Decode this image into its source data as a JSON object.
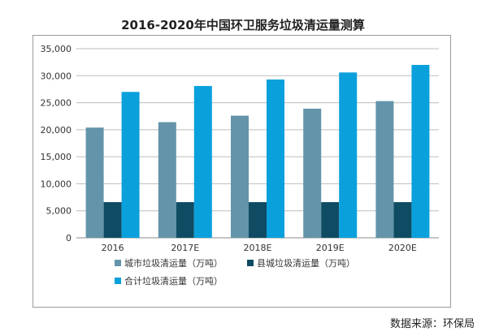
{
  "chart_data": {
    "type": "bar",
    "title": "2016-2020年中国环卫服务垃圾清运量测算",
    "categories": [
      "2016",
      "2017E",
      "2018E",
      "2019E",
      "2020E"
    ],
    "series": [
      {
        "name": "城市垃圾清运量（万吨）",
        "values": [
          20400,
          21400,
          22600,
          23900,
          25300
        ],
        "color": "#6394AA"
      },
      {
        "name": "县城垃圾清运量（万吨）",
        "values": [
          6600,
          6600,
          6600,
          6600,
          6600
        ],
        "color": "#0F4C63"
      },
      {
        "name": "合计垃圾清运量（万吨）",
        "values": [
          27000,
          28100,
          29300,
          30600,
          32000
        ],
        "color": "#0AA0DC"
      }
    ],
    "yticks": [
      "0",
      "5,000",
      "10,000",
      "15,000",
      "20,000",
      "25,000",
      "30,000",
      "35,000"
    ],
    "ylim": [
      0,
      35000
    ],
    "grid": true,
    "legend_position": "bottom-left"
  },
  "source": "数据来源：环保局"
}
